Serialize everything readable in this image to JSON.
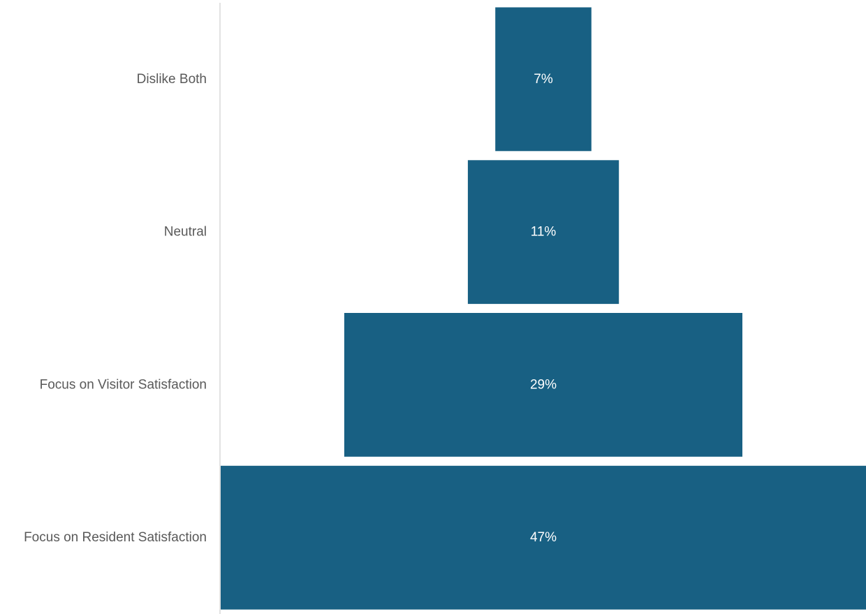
{
  "chart_data": {
    "type": "bar",
    "subtype": "funnel",
    "orientation": "horizontal",
    "categories": [
      "Dislike Both",
      "Neutral",
      "Focus on Visitor Satisfaction",
      "Focus on Resident Satisfaction"
    ],
    "values": [
      7,
      11,
      29,
      47
    ],
    "value_labels": [
      "7%",
      "11%",
      "29%",
      "47%"
    ],
    "unit": "%",
    "bar_color": "#186083",
    "label_color": "#595959",
    "data_label_color": "#ffffff",
    "axis_color": "#d9d9d9",
    "title": "",
    "xlabel": "",
    "ylabel": "",
    "grid": false,
    "legend": "none"
  }
}
